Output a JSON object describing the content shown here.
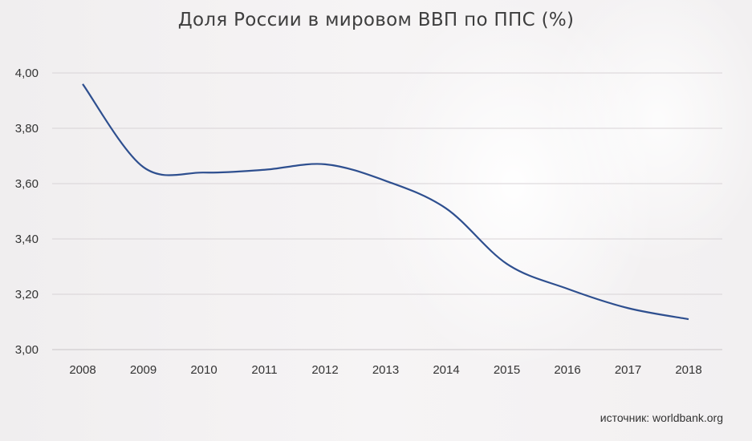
{
  "chart_data": {
    "type": "line",
    "title": "Доля России в мировом  ВВП по ППС (%)",
    "x": [
      "2008",
      "2009",
      "2010",
      "2011",
      "2012",
      "2013",
      "2014",
      "2015",
      "2016",
      "2017",
      "2018"
    ],
    "series": [
      {
        "values": [
          3.96,
          3.66,
          3.64,
          3.65,
          3.67,
          3.61,
          3.51,
          3.31,
          3.22,
          3.15,
          3.11
        ],
        "color": "#2e4f8f"
      }
    ],
    "yticks": [
      "3,00",
      "3,20",
      "3,40",
      "3,60",
      "3,80",
      "4,00"
    ],
    "ylim": [
      3.0,
      4.0
    ],
    "grid": true,
    "xlabel": "",
    "ylabel": ""
  },
  "source_text": "источник: worldbank.org",
  "colors": {
    "line": "#2e4f8f",
    "grid": "#d8d3d6",
    "axis": "#c9c4c7"
  }
}
